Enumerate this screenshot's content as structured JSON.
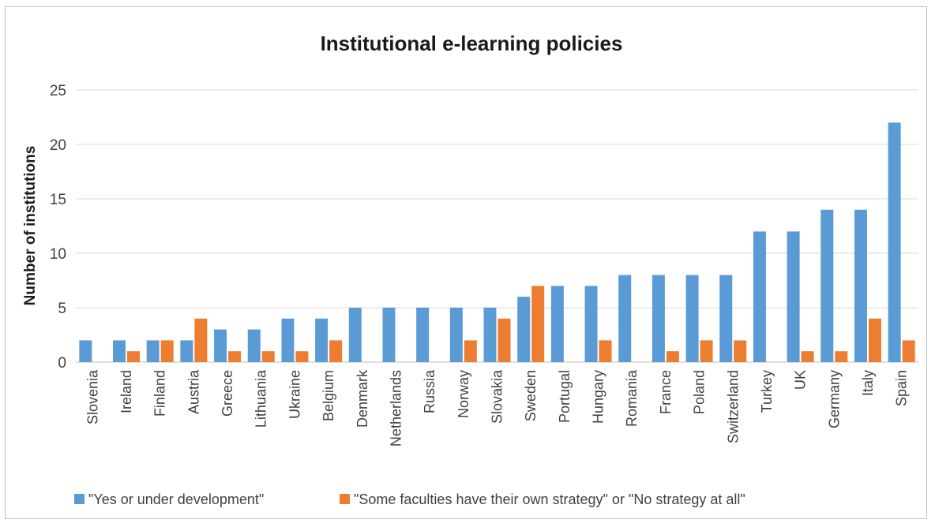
{
  "chart_data": {
    "type": "bar",
    "title": "Institutional e-learning policies",
    "xlabel": "",
    "ylabel": "Number of institutions",
    "ylim": [
      0,
      25
    ],
    "yticks": [
      0,
      5,
      10,
      15,
      20,
      25
    ],
    "grid": true,
    "legend_position": "bottom",
    "categories": [
      "Slovenia",
      "Ireland",
      "Finland",
      "Austria",
      "Greece",
      "Lithuania",
      "Ukraine",
      "Belgium",
      "Denmark",
      "Netherlands",
      "Russia",
      "Norway",
      "Slovakia",
      "Sweden",
      "Portugal",
      "Hungary",
      "Romania",
      "France",
      "Poland",
      "Switzerland",
      "Turkey",
      "UK",
      "Germany",
      "Italy",
      "Spain"
    ],
    "series": [
      {
        "name": "\"Yes or under development\"",
        "color": "#5b9bd5",
        "values": [
          2,
          2,
          2,
          2,
          3,
          3,
          4,
          4,
          5,
          5,
          5,
          5,
          5,
          6,
          7,
          7,
          8,
          8,
          8,
          8,
          12,
          12,
          14,
          14,
          22
        ]
      },
      {
        "name": "\"Some faculties have their own strategy\" or \"No strategy at all\"",
        "color": "#ed7d31",
        "values": [
          0,
          1,
          2,
          4,
          1,
          1,
          1,
          2,
          0,
          0,
          0,
          2,
          4,
          7,
          0,
          2,
          0,
          1,
          2,
          2,
          0,
          1,
          1,
          4,
          2
        ]
      }
    ]
  }
}
